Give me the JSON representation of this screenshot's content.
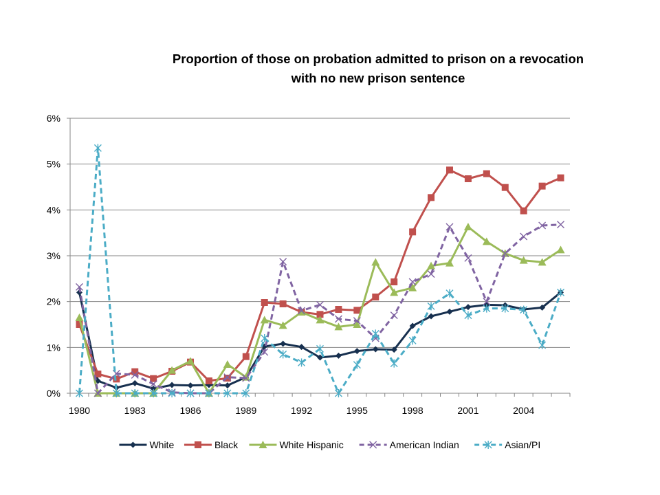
{
  "chart_data": {
    "type": "line",
    "title_lines": [
      "Proportion of those on probation admitted to prison on a revocation",
      "with no new prison sentence"
    ],
    "xlabel": "",
    "ylabel": "",
    "x": [
      1980,
      1981,
      1982,
      1983,
      1984,
      1985,
      1986,
      1987,
      1988,
      1989,
      1990,
      1991,
      1992,
      1993,
      1994,
      1995,
      1996,
      1997,
      1998,
      1999,
      2000,
      2001,
      2002,
      2003,
      2004,
      2005,
      2006
    ],
    "x_tick_labels": [
      "1980",
      "1983",
      "1986",
      "1989",
      "1992",
      "1995",
      "1998",
      "2001",
      "2004"
    ],
    "ylim": [
      0,
      6
    ],
    "y_ticks": [
      0,
      1,
      2,
      3,
      4,
      5,
      6
    ],
    "y_tick_labels": [
      "0%",
      "1%",
      "2%",
      "3%",
      "4%",
      "5%",
      "6%"
    ],
    "y_unit": "percent",
    "grid": "horizontal",
    "legend_position": "bottom",
    "series": [
      {
        "name": "White",
        "color": "#17304f",
        "marker": "diamond",
        "dash": false,
        "values": [
          2.2,
          0.27,
          0.12,
          0.22,
          0.1,
          0.18,
          0.17,
          0.18,
          0.17,
          0.35,
          1.02,
          1.08,
          1.01,
          0.78,
          0.82,
          0.92,
          0.96,
          0.95,
          1.47,
          1.68,
          1.78,
          1.88,
          1.93,
          1.92,
          1.83,
          1.87,
          2.2
        ]
      },
      {
        "name": "Black",
        "color": "#c0504d",
        "marker": "square",
        "dash": false,
        "values": [
          1.5,
          0.42,
          0.31,
          0.47,
          0.32,
          0.48,
          0.68,
          0.27,
          0.33,
          0.8,
          1.98,
          1.95,
          1.77,
          1.72,
          1.83,
          1.81,
          2.1,
          2.43,
          3.52,
          4.27,
          4.87,
          4.68,
          4.79,
          4.49,
          3.98,
          4.52,
          4.7
        ]
      },
      {
        "name": "White Hispanic",
        "color": "#9bbb59",
        "marker": "triangle",
        "dash": false,
        "values": [
          1.65,
          0,
          0,
          0,
          0,
          0.5,
          0.7,
          0,
          0.63,
          0.35,
          1.6,
          1.48,
          1.77,
          1.6,
          1.45,
          1.5,
          2.86,
          2.2,
          2.3,
          2.78,
          2.84,
          3.63,
          3.31,
          3.05,
          2.9,
          2.86,
          3.13
        ]
      },
      {
        "name": "American Indian",
        "color": "#8064a2",
        "marker": "x",
        "dash": true,
        "values": [
          2.32,
          0,
          0.43,
          0.4,
          0.2,
          0.02,
          0,
          0,
          0.35,
          0.33,
          0.9,
          2.87,
          1.8,
          1.93,
          1.62,
          1.58,
          1.2,
          1.7,
          2.43,
          2.6,
          3.63,
          2.95,
          2.0,
          3.05,
          3.42,
          3.66,
          3.68
        ]
      },
      {
        "name": "Asian/PI",
        "color": "#4bacc6",
        "marker": "star",
        "dash": true,
        "values": [
          0,
          5.35,
          0,
          0,
          0,
          0,
          0,
          0,
          0,
          0,
          1.2,
          0.85,
          0.67,
          0.97,
          0,
          0.62,
          1.3,
          0.65,
          1.15,
          1.9,
          2.18,
          1.7,
          1.85,
          1.85,
          1.82,
          1.05,
          2.2
        ]
      }
    ]
  }
}
